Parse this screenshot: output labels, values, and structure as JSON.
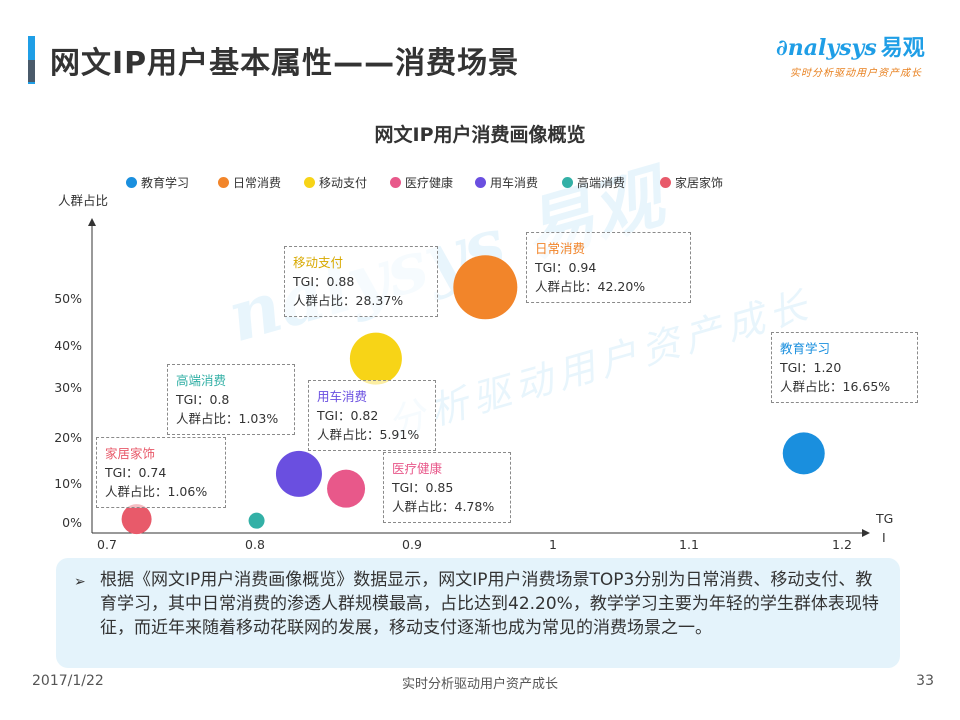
{
  "header": {
    "title": "网文IP用户基本属性——消费场景",
    "logo_text": "nalysys",
    "logo_cn": "易观",
    "logo_tagline": "实时分析驱动用户资产成长"
  },
  "watermark": {
    "main": "nalysys 易观",
    "sub": "分析驱动用户资产成长"
  },
  "chart_data": {
    "type": "scatter",
    "title": "网文IP用户消费画像概览",
    "xlabel": "TGI",
    "ylabel": "人群占比",
    "xlim": [
      0.7,
      1.2
    ],
    "x_ticks": [
      "0.7",
      "0.8",
      "0.9",
      "1",
      "1.1",
      "1.2"
    ],
    "y_ticks": [
      "0%",
      "10%",
      "20%",
      "30%",
      "40%",
      "50%"
    ],
    "legend_position": "top",
    "series": [
      {
        "name": "教育学习",
        "x": 1.2,
        "y": 16.65,
        "color": "#1a8fde",
        "label_name": "教育学习",
        "label_tgi": "TGI：1.20",
        "label_share": "人群占比：16.65%"
      },
      {
        "name": "日常消费",
        "x": 0.94,
        "y": 42.2,
        "color": "#f2852a",
        "label_name": "日常消费",
        "label_tgi": "TGI：0.94",
        "label_share": "人群占比：42.20%"
      },
      {
        "name": "移动支付",
        "x": 0.88,
        "y": 28.37,
        "color": "#f7d417",
        "label_name": "移动支付",
        "label_tgi": "TGI：0.88",
        "label_share": "人群占比：28.37%"
      },
      {
        "name": "医疗健康",
        "x": 0.85,
        "y": 4.78,
        "color": "#e8588a",
        "label_name": "医疗健康",
        "label_tgi": "TGI：0.85",
        "label_share": "人群占比：4.78%"
      },
      {
        "name": "用车消费",
        "x": 0.82,
        "y": 5.91,
        "color": "#6a4fe0",
        "label_name": "用车消费",
        "label_tgi": "TGI：0.82",
        "label_share": "人群占比：5.91%"
      },
      {
        "name": "高端消费",
        "x": 0.8,
        "y": 1.03,
        "color": "#33b0a6",
        "label_name": "高端消费",
        "label_tgi": "TGI：0.8",
        "label_share": "人群占比：1.03%"
      },
      {
        "name": "家居家饰",
        "x": 0.74,
        "y": 1.06,
        "color": "#e85a6a",
        "label_name": "家居家饰",
        "label_tgi": "TGI：0.74",
        "label_share": "人群占比：1.06%"
      }
    ]
  },
  "summary": {
    "marker": "➢",
    "text": "根据《网文IP用户消费画像概览》数据显示，网文IP用户消费场景TOP3分别为日常消费、移动支付、教育学习，其中日常消费的渗透人群规模最高，占比达到42.20%，教学学习主要为年轻的学生群体表现特征，而近年来随着移动花联网的发展，移动支付逐渐也成为常见的消费场景之一。"
  },
  "footer": {
    "date": "2017/1/22",
    "center": "实时分析驱动用户资产成长",
    "page": "33"
  }
}
